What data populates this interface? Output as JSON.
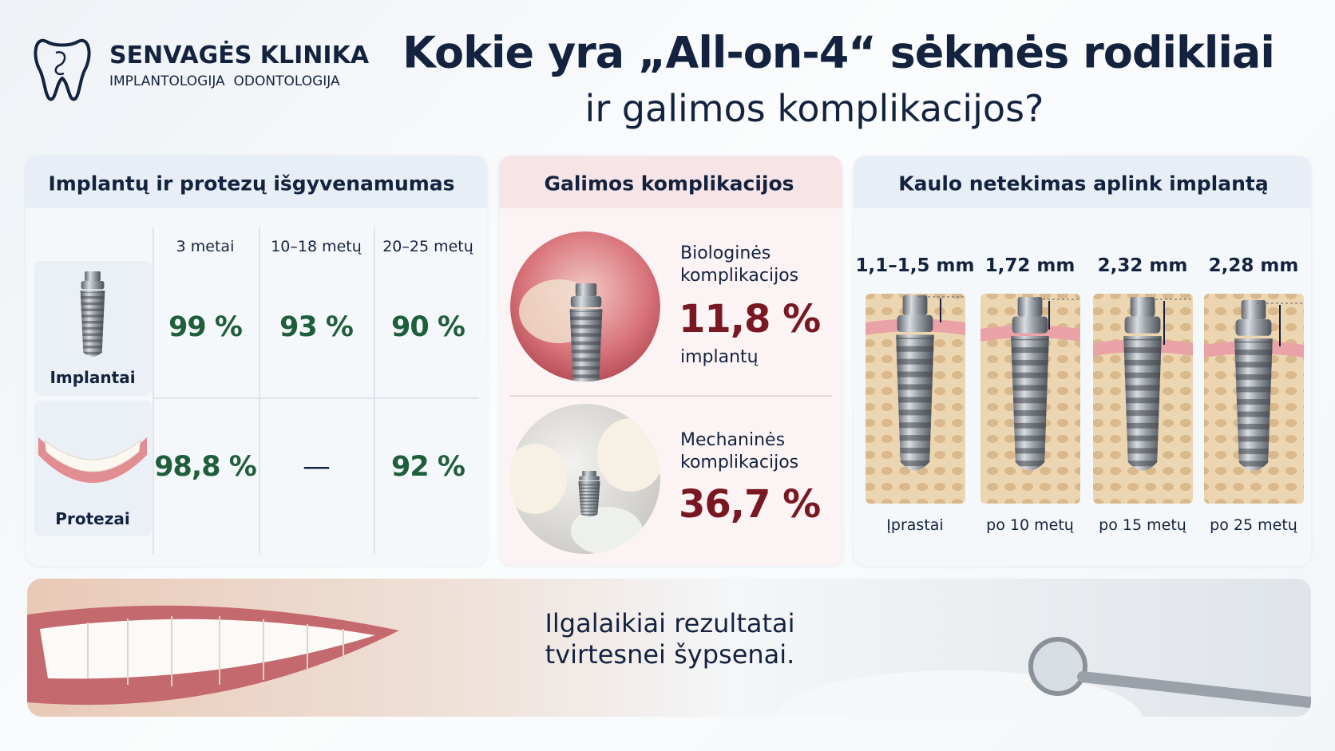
{
  "header": {
    "brand": "SENVAGĖS KLINIKA",
    "tagline": [
      "IMPLANTOLOGIJA",
      "ODONTOLOGIJA"
    ],
    "title": "Kokie yra „All-on-4“ sėkmės rodikliai",
    "subtitle": "ir galimos komplikacijos?"
  },
  "survival": {
    "title": "Implantų ir protezų išgyvenamumas",
    "columns": [
      "3 metai",
      "10–18 metų",
      "20–25 metų"
    ],
    "rows": [
      {
        "label": "Implantai",
        "cells": [
          "99 %",
          "93 %",
          "90 %"
        ]
      },
      {
        "label": "Protezai",
        "cells": [
          "98,8 %",
          "—",
          "92 %"
        ]
      }
    ]
  },
  "complications": {
    "title": "Galimos komplikacijos",
    "items": [
      {
        "label": "Biologinės komplikacijos",
        "value": "11,8 %",
        "note": "implantų"
      },
      {
        "label": "Mechaninės komplikacijos",
        "value": "36,7 %"
      }
    ]
  },
  "bone_loss": {
    "title": "Kaulo netekimas aplink implantą",
    "items": [
      {
        "value": "1,1–1,5 mm",
        "caption": "Įprastai"
      },
      {
        "value": "1,72 mm",
        "caption": "po 10 metų"
      },
      {
        "value": "2,32 mm",
        "caption": "po 15 metų"
      },
      {
        "value": "2,28 mm",
        "caption": "po 25 metų"
      }
    ]
  },
  "footer": {
    "lines": [
      "Ilgalaikiai rezultatai",
      "tvirtesnei šypsenai."
    ]
  }
}
